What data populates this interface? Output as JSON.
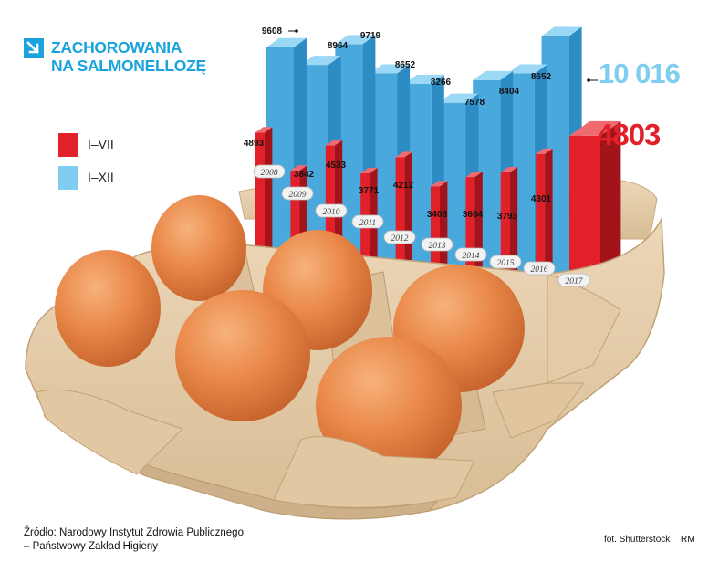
{
  "title": {
    "line1": "ZACHOROWANIA",
    "line2": "NA SALMONELLOZĘ"
  },
  "legend": [
    {
      "label": "I–VII",
      "color": "#e2202a"
    },
    {
      "label": "I–XII",
      "color": "#7fcdf0"
    }
  ],
  "colors": {
    "blue_front": "#4aa9dc",
    "blue_side": "#2e8cc4",
    "blue_top": "#9ad8f5",
    "red_front": "#e2202a",
    "red_side": "#a3131a",
    "red_top": "#f06b70",
    "title": "#1aa3dc",
    "highlight_blue": "#7fcdf0",
    "highlight_red": "#e2202a"
  },
  "chart_data": {
    "type": "bar",
    "title": "ZACHOROWANIA NA SALMONELLOZĘ",
    "categories": [
      "2008",
      "2009",
      "2010",
      "2011",
      "2012",
      "2013",
      "2014",
      "2015",
      "2016",
      "2017"
    ],
    "series": [
      {
        "name": "I–XII",
        "values": [
          9608,
          8964,
          9719,
          8652,
          8266,
          7578,
          8404,
          8652,
          10016,
          null
        ]
      },
      {
        "name": "I–VII",
        "values": [
          4893,
          3842,
          4533,
          3771,
          4212,
          3408,
          3664,
          3793,
          4301,
          4803
        ]
      }
    ],
    "value_labels": {
      "I–XII": [
        "9608",
        "8964",
        "9719",
        "8652",
        "8266",
        "7578",
        "8404",
        "8652",
        "10 016",
        ""
      ],
      "I–VII": [
        "4893",
        "3842",
        "4533",
        "3771",
        "4212",
        "3408",
        "3664",
        "3793",
        "4301",
        "4803"
      ]
    },
    "legend_position": "left",
    "grid": false
  },
  "footer": {
    "source_line1": "Źródło: Narodowy Instytut Zdrowia Publicznego",
    "source_line2": "– Państwowy Zakład Higieny",
    "photo_credit": "fot. Shutterstock",
    "author": "RM"
  }
}
